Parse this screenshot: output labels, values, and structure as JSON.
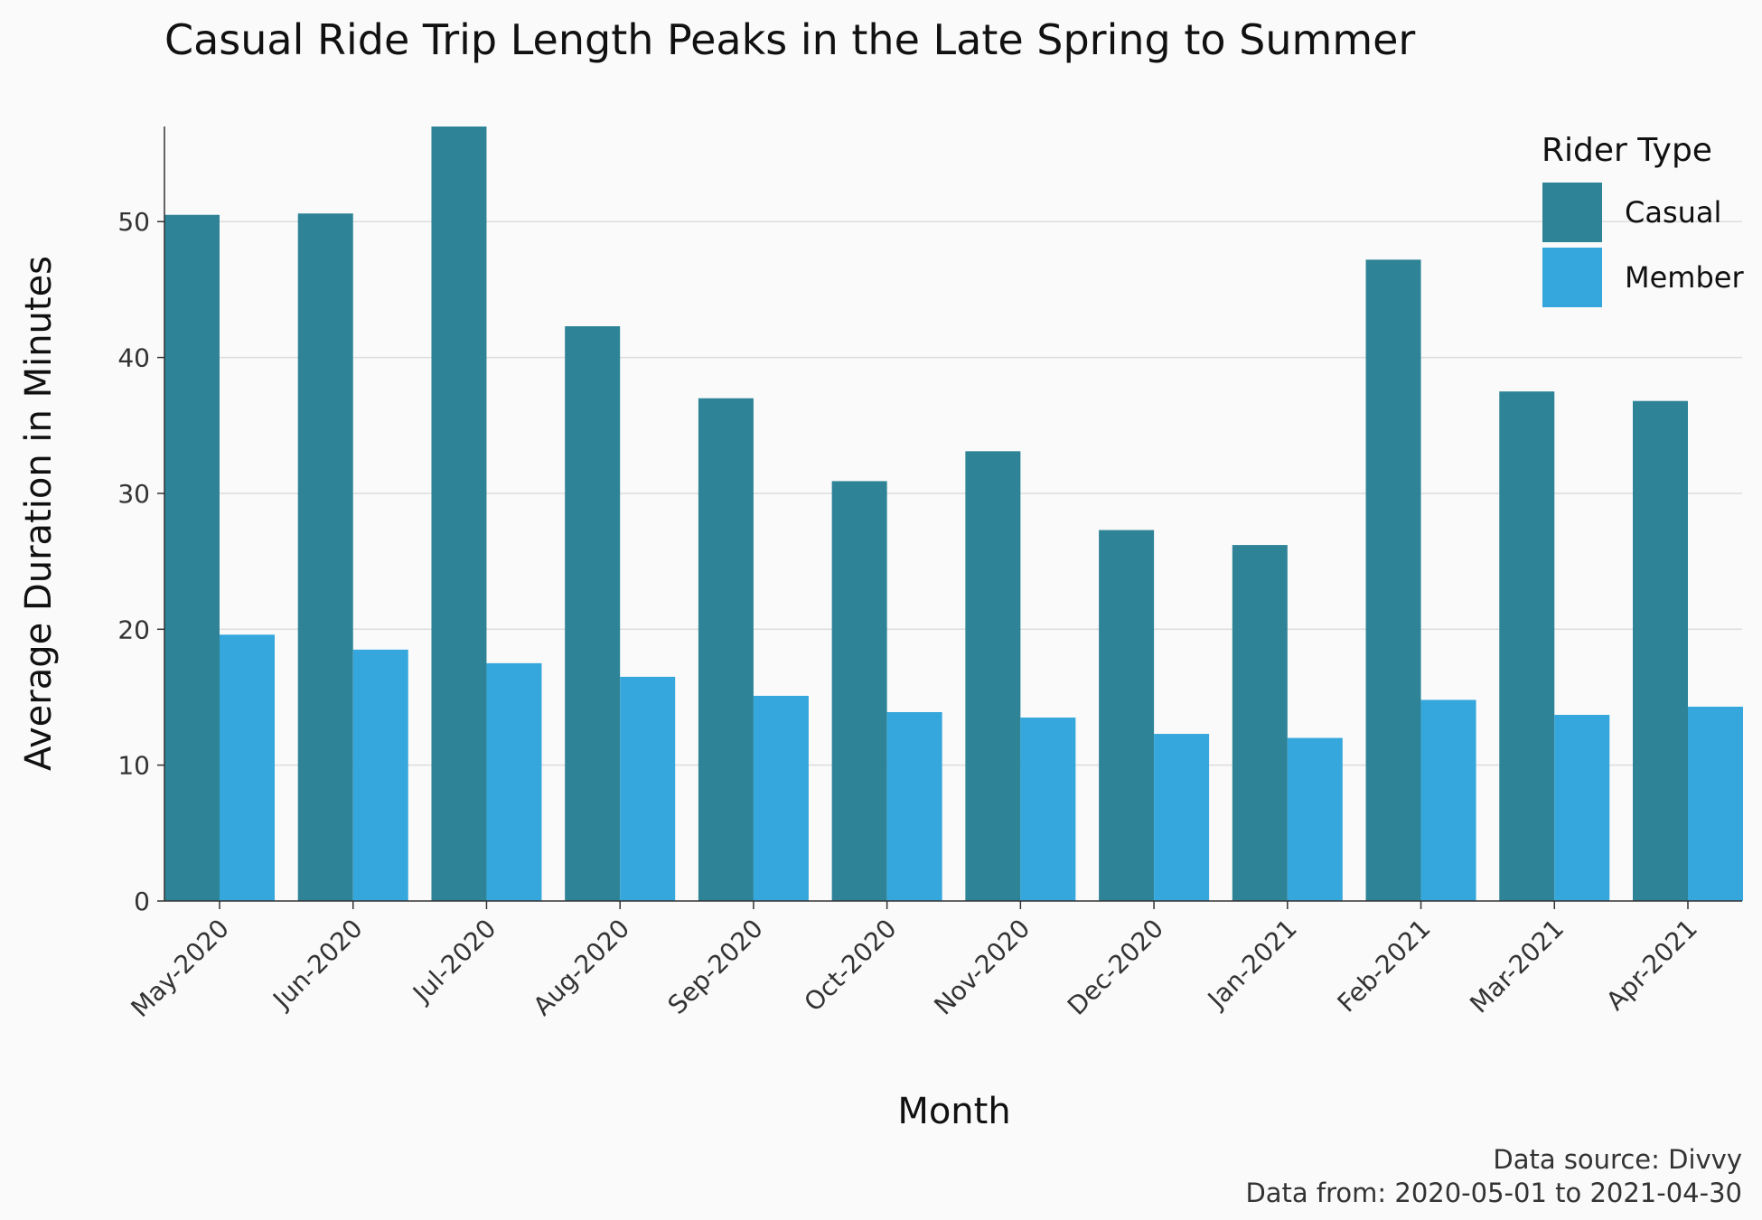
{
  "chart_data": {
    "type": "bar",
    "title": "Casual Ride Trip Length Peaks in the Late Spring to Summer",
    "xlabel": "Month",
    "ylabel": "Average Duration in Minutes",
    "ylim": [
      0,
      57
    ],
    "yticks": [
      0,
      10,
      20,
      30,
      40,
      50
    ],
    "grid": true,
    "legend_position": "top-right",
    "legend_title": "Rider Type",
    "categories": [
      "May-2020",
      "Jun-2020",
      "Jul-2020",
      "Aug-2020",
      "Sep-2020",
      "Oct-2020",
      "Nov-2020",
      "Dec-2020",
      "Jan-2021",
      "Feb-2021",
      "Mar-2021",
      "Apr-2021"
    ],
    "series": [
      {
        "name": "Casual",
        "color": "#2e8397",
        "values": [
          50.5,
          50.6,
          57.0,
          42.3,
          37.0,
          30.9,
          33.1,
          27.3,
          26.2,
          47.2,
          37.5,
          36.8
        ]
      },
      {
        "name": "Member",
        "color": "#35a7dc",
        "values": [
          19.6,
          18.5,
          17.5,
          16.5,
          15.1,
          13.9,
          13.5,
          12.3,
          12.0,
          14.8,
          13.7,
          14.3
        ]
      }
    ],
    "caption": [
      "Data source: Divvy",
      "Data from: 2020-05-01 to 2021-04-30"
    ]
  }
}
